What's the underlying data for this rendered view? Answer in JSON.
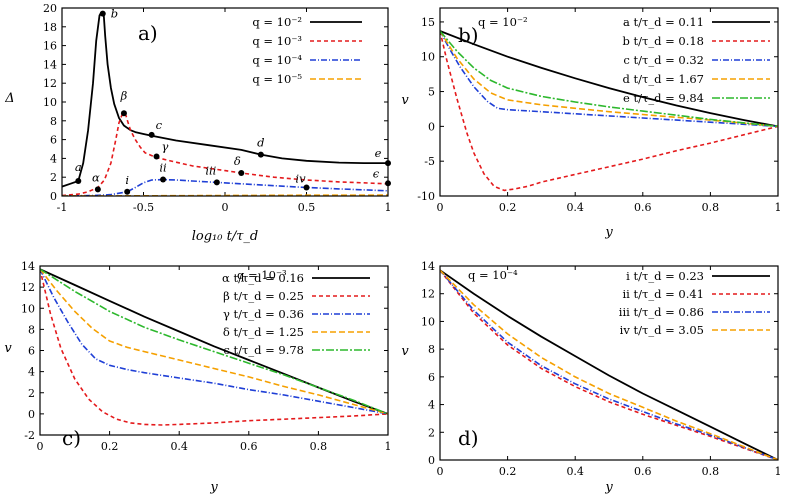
{
  "colors": {
    "black": "#000000",
    "red": "#e41a1c",
    "blue": "#1f3fd6",
    "orange": "#f5a000",
    "green": "#2db82d"
  },
  "chart_data": [
    {
      "id": "a",
      "type": "line",
      "panel_label": "a)",
      "title": "",
      "xlabel": "log₁₀ t/τ_d",
      "ylabel": "Δ",
      "xlim": [
        -1,
        1
      ],
      "ylim": [
        0,
        20
      ],
      "xticks": [
        -1,
        -0.5,
        0,
        0.5,
        1
      ],
      "xtick_labels": [
        "-1",
        "-0.5",
        "0",
        "0.5",
        "1"
      ],
      "yticks": [
        0,
        2,
        4,
        6,
        8,
        10,
        12,
        14,
        16,
        18,
        20
      ],
      "ytick_labels": [
        "0",
        "2",
        "4",
        "6",
        "8",
        "10",
        "12",
        "14",
        "16",
        "18",
        "20"
      ],
      "legend_position": "top-right",
      "series": [
        {
          "name": "q = 10⁻²",
          "color": "black",
          "dash": "",
          "x": [
            -1,
            -0.95,
            -0.9,
            -0.87,
            -0.84,
            -0.81,
            -0.79,
            -0.77,
            -0.76,
            -0.75,
            -0.745,
            -0.735,
            -0.72,
            -0.7,
            -0.68,
            -0.65,
            -0.62,
            -0.58,
            -0.55,
            -0.5,
            -0.45,
            -0.3,
            -0.1,
            0.1,
            0.22,
            0.35,
            0.5,
            0.7,
            0.85,
            1
          ],
          "y": [
            1.0,
            1.3,
            1.6,
            3.5,
            7.0,
            12.0,
            16.5,
            19.2,
            19.5,
            19.5,
            19.5,
            17.0,
            14.0,
            11.5,
            9.8,
            8.3,
            7.5,
            7.0,
            6.8,
            6.6,
            6.4,
            5.9,
            5.4,
            4.9,
            4.4,
            4.0,
            3.75,
            3.55,
            3.5,
            3.5
          ]
        },
        {
          "name": "q = 10⁻³",
          "color": "red",
          "dash": "4,3",
          "x": [
            -1,
            -0.9,
            -0.84,
            -0.78,
            -0.74,
            -0.7,
            -0.67,
            -0.65,
            -0.63,
            -0.62,
            -0.61,
            -0.6,
            -0.58,
            -0.55,
            -0.52,
            -0.49,
            -0.45,
            -0.42,
            -0.35,
            -0.2,
            0,
            0.1,
            0.3,
            0.5,
            0.7,
            1
          ],
          "y": [
            0.05,
            0.2,
            0.45,
            0.9,
            1.7,
            3.5,
            6.0,
            7.8,
            8.7,
            8.85,
            8.7,
            8.1,
            7.0,
            6.0,
            5.2,
            4.6,
            4.3,
            4.1,
            3.8,
            3.2,
            2.7,
            2.45,
            2.0,
            1.7,
            1.5,
            1.3
          ]
        },
        {
          "name": "q = 10⁻⁴",
          "color": "blue",
          "dash": "6,2,1,2",
          "x": [
            -1,
            -0.8,
            -0.7,
            -0.6,
            -0.55,
            -0.5,
            -0.45,
            -0.38,
            -0.3,
            -0.2,
            -0.05,
            0.1,
            0.3,
            0.5,
            0.7,
            1
          ],
          "y": [
            0,
            0.05,
            0.15,
            0.45,
            0.9,
            1.4,
            1.7,
            1.75,
            1.7,
            1.6,
            1.45,
            1.3,
            1.1,
            0.9,
            0.75,
            0.55
          ]
        },
        {
          "name": "q = 10⁻⁵",
          "color": "orange",
          "dash": "6,3",
          "x": [
            -1,
            -0.5,
            0,
            0.5,
            1
          ],
          "y": [
            0,
            0.02,
            0.05,
            0.08,
            0.1
          ]
        }
      ],
      "points": [
        {
          "label": "a",
          "x": -0.9,
          "y": 1.6,
          "ldx": 0,
          "ldy": -10,
          "anchor": "middle"
        },
        {
          "label": "b",
          "x": -0.75,
          "y": 19.4,
          "ldx": 8,
          "ldy": 4,
          "anchor": "start"
        },
        {
          "label": "c",
          "x": -0.45,
          "y": 6.5,
          "ldx": 4,
          "ldy": -6,
          "anchor": "start"
        },
        {
          "label": "d",
          "x": 0.22,
          "y": 4.4,
          "ldx": 0,
          "ldy": -8,
          "anchor": "middle"
        },
        {
          "label": "e",
          "x": 1.0,
          "y": 3.5,
          "ldx": -10,
          "ldy": -6,
          "anchor": "middle"
        },
        {
          "label": "α",
          "x": -0.78,
          "y": 0.7,
          "ldx": -2,
          "ldy": -8,
          "anchor": "middle"
        },
        {
          "label": "β",
          "x": -0.62,
          "y": 8.8,
          "ldx": 0,
          "ldy": -14,
          "anchor": "middle"
        },
        {
          "label": "γ",
          "x": -0.42,
          "y": 4.2,
          "ldx": 5,
          "ldy": -6,
          "anchor": "start"
        },
        {
          "label": "δ",
          "x": 0.1,
          "y": 2.45,
          "ldx": -4,
          "ldy": -8,
          "anchor": "middle"
        },
        {
          "label": "ϵ",
          "x": 1.0,
          "y": 1.35,
          "ldx": -12,
          "ldy": -6,
          "anchor": "middle"
        },
        {
          "label": "i",
          "x": -0.6,
          "y": 0.45,
          "ldx": 0,
          "ldy": -8,
          "anchor": "middle"
        },
        {
          "label": "ii",
          "x": -0.38,
          "y": 1.75,
          "ldx": 0,
          "ldy": -8,
          "anchor": "middle"
        },
        {
          "label": "iii",
          "x": -0.05,
          "y": 1.45,
          "ldx": -6,
          "ldy": -8,
          "anchor": "middle"
        },
        {
          "label": "iv",
          "x": 0.5,
          "y": 0.9,
          "ldx": -6,
          "ldy": -5,
          "anchor": "middle"
        }
      ]
    },
    {
      "id": "b",
      "type": "line",
      "panel_label": "b)",
      "title": "q = 10⁻²",
      "xlabel": "y",
      "ylabel": "v",
      "xlim": [
        0,
        1
      ],
      "ylim": [
        -10,
        17
      ],
      "xticks": [
        0,
        0.2,
        0.4,
        0.6,
        0.8,
        1
      ],
      "xtick_labels": [
        "0",
        "0.2",
        "0.4",
        "0.6",
        "0.8",
        "1"
      ],
      "yticks": [
        -10,
        -5,
        0,
        5,
        10,
        15
      ],
      "ytick_labels": [
        "-10",
        "-5",
        "0",
        "5",
        "10",
        "15"
      ],
      "legend_position": "top-right",
      "series": [
        {
          "name": "a t/τ_d = 0.11",
          "color": "black",
          "dash": "",
          "x": [
            0,
            0.1,
            0.2,
            0.3,
            0.4,
            0.5,
            0.6,
            0.7,
            0.8,
            0.9,
            1
          ],
          "y": [
            13.7,
            11.8,
            10.0,
            8.4,
            6.9,
            5.5,
            4.2,
            3.0,
            1.9,
            0.9,
            0
          ]
        },
        {
          "name": "b t/τ_d = 0.18",
          "color": "red",
          "dash": "4,3",
          "x": [
            0,
            0.02,
            0.05,
            0.08,
            0.1,
            0.13,
            0.16,
            0.19,
            0.22,
            0.26,
            0.3,
            0.4,
            0.5,
            0.6,
            0.7,
            0.8,
            0.9,
            1
          ],
          "y": [
            13.7,
            9.5,
            4.0,
            -1.0,
            -3.8,
            -6.8,
            -8.6,
            -9.2,
            -9.0,
            -8.6,
            -8.0,
            -6.9,
            -5.8,
            -4.7,
            -3.5,
            -2.4,
            -1.2,
            0
          ]
        },
        {
          "name": "c t/τ_d = 0.32",
          "color": "blue",
          "dash": "6,2,1,2",
          "x": [
            0,
            0.03,
            0.06,
            0.1,
            0.14,
            0.17,
            0.2,
            0.3,
            0.4,
            0.5,
            0.6,
            0.7,
            0.8,
            0.9,
            1
          ],
          "y": [
            13.7,
            11.0,
            8.5,
            5.7,
            3.6,
            2.6,
            2.4,
            2.1,
            1.8,
            1.5,
            1.2,
            0.9,
            0.6,
            0.3,
            0
          ]
        },
        {
          "name": "d t/τ_d = 1.67",
          "color": "orange",
          "dash": "6,3",
          "x": [
            0,
            0.05,
            0.1,
            0.15,
            0.2,
            0.3,
            0.4,
            0.5,
            0.6,
            0.7,
            0.8,
            0.9,
            1
          ],
          "y": [
            13.7,
            9.8,
            6.8,
            4.8,
            3.8,
            3.1,
            2.6,
            2.1,
            1.7,
            1.3,
            0.9,
            0.45,
            0
          ]
        },
        {
          "name": "e t/τ_d = 9.84",
          "color": "green",
          "dash": "8,2,2,2",
          "x": [
            0,
            0.05,
            0.1,
            0.15,
            0.2,
            0.3,
            0.4,
            0.5,
            0.6,
            0.7,
            0.8,
            0.9,
            1
          ],
          "y": [
            13.7,
            10.8,
            8.4,
            6.6,
            5.5,
            4.3,
            3.5,
            2.8,
            2.2,
            1.6,
            1.0,
            0.5,
            0
          ]
        }
      ]
    },
    {
      "id": "c",
      "type": "line",
      "panel_label": "c)",
      "title": "q = 10⁻³",
      "xlabel": "y",
      "ylabel": "v",
      "xlim": [
        0,
        1
      ],
      "ylim": [
        -2,
        14
      ],
      "xticks": [
        0,
        0.2,
        0.4,
        0.6,
        0.8,
        1
      ],
      "xtick_labels": [
        "0",
        "0.2",
        "0.4",
        "0.6",
        "0.8",
        "1"
      ],
      "yticks": [
        -2,
        0,
        2,
        4,
        6,
        8,
        10,
        12,
        14
      ],
      "ytick_labels": [
        "-2",
        "0",
        "2",
        "4",
        "6",
        "8",
        "10",
        "12",
        "14"
      ],
      "legend_position": "top-right",
      "series": [
        {
          "name": "α t/τ_d = 0.16",
          "color": "black",
          "dash": "",
          "x": [
            0,
            0.1,
            0.2,
            0.3,
            0.4,
            0.5,
            0.6,
            0.7,
            0.8,
            0.9,
            1
          ],
          "y": [
            13.7,
            12.2,
            10.7,
            9.2,
            7.8,
            6.4,
            5.1,
            3.8,
            2.5,
            1.2,
            0
          ]
        },
        {
          "name": "β t/τ_d = 0.25",
          "color": "red",
          "dash": "4,3",
          "x": [
            0,
            0.03,
            0.06,
            0.1,
            0.14,
            0.18,
            0.22,
            0.26,
            0.3,
            0.35,
            0.4,
            0.5,
            0.6,
            0.7,
            0.8,
            0.9,
            1
          ],
          "y": [
            13.7,
            9.5,
            6.2,
            3.3,
            1.4,
            0.2,
            -0.5,
            -0.85,
            -1.0,
            -1.05,
            -1.0,
            -0.85,
            -0.65,
            -0.5,
            -0.35,
            -0.2,
            0
          ]
        },
        {
          "name": "γ t/τ_d = 0.36",
          "color": "blue",
          "dash": "6,2,1,2",
          "x": [
            0,
            0.04,
            0.08,
            0.12,
            0.16,
            0.2,
            0.25,
            0.3,
            0.4,
            0.5,
            0.6,
            0.7,
            0.8,
            0.9,
            1
          ],
          "y": [
            13.7,
            11.0,
            8.7,
            6.6,
            5.2,
            4.6,
            4.2,
            3.9,
            3.4,
            2.9,
            2.3,
            1.8,
            1.2,
            0.6,
            0
          ]
        },
        {
          "name": "δ t/τ_d = 1.25",
          "color": "orange",
          "dash": "6,3",
          "x": [
            0,
            0.05,
            0.1,
            0.15,
            0.2,
            0.25,
            0.3,
            0.4,
            0.5,
            0.6,
            0.7,
            0.8,
            0.9,
            1
          ],
          "y": [
            13.7,
            11.6,
            9.7,
            8.1,
            6.9,
            6.3,
            5.9,
            5.1,
            4.3,
            3.5,
            2.6,
            1.8,
            0.9,
            0
          ]
        },
        {
          "name": "ϵ t/τ_d = 9.78",
          "color": "green",
          "dash": "8,2,2,2",
          "x": [
            0,
            0.1,
            0.2,
            0.3,
            0.4,
            0.5,
            0.6,
            0.7,
            0.8,
            0.9,
            1
          ],
          "y": [
            13.7,
            11.6,
            9.7,
            8.2,
            7.0,
            5.9,
            4.8,
            3.7,
            2.5,
            1.3,
            0
          ]
        }
      ]
    },
    {
      "id": "d",
      "type": "line",
      "panel_label": "d)",
      "title": "q = 10⁻⁴",
      "xlabel": "y",
      "ylabel": "v",
      "xlim": [
        0,
        1
      ],
      "ylim": [
        0,
        14
      ],
      "xticks": [
        0,
        0.2,
        0.4,
        0.6,
        0.8,
        1
      ],
      "xtick_labels": [
        "0",
        "0.2",
        "0.4",
        "0.6",
        "0.8",
        "1"
      ],
      "yticks": [
        0,
        2,
        4,
        6,
        8,
        10,
        12,
        14
      ],
      "ytick_labels": [
        "0",
        "2",
        "4",
        "6",
        "8",
        "10",
        "12",
        "14"
      ],
      "legend_position": "top-right",
      "series": [
        {
          "name": "i t/τ_d = 0.23",
          "color": "black",
          "dash": "",
          "x": [
            0,
            0.1,
            0.2,
            0.3,
            0.4,
            0.5,
            0.6,
            0.7,
            0.8,
            0.9,
            1
          ],
          "y": [
            13.7,
            12.0,
            10.4,
            8.9,
            7.5,
            6.1,
            4.8,
            3.6,
            2.4,
            1.2,
            0
          ]
        },
        {
          "name": "ii t/τ_d = 0.41",
          "color": "red",
          "dash": "4,3",
          "x": [
            0,
            0.1,
            0.2,
            0.3,
            0.4,
            0.5,
            0.6,
            0.7,
            0.8,
            0.9,
            1
          ],
          "y": [
            13.7,
            10.6,
            8.3,
            6.6,
            5.3,
            4.2,
            3.3,
            2.5,
            1.7,
            0.85,
            0
          ]
        },
        {
          "name": "iii t/τ_d = 0.86",
          "color": "blue",
          "dash": "6,2,1,2",
          "x": [
            0,
            0.1,
            0.2,
            0.3,
            0.4,
            0.5,
            0.6,
            0.7,
            0.8,
            0.9,
            1
          ],
          "y": [
            13.7,
            10.8,
            8.5,
            6.8,
            5.5,
            4.4,
            3.5,
            2.6,
            1.8,
            0.9,
            0
          ]
        },
        {
          "name": "iv t/τ_d = 3.05",
          "color": "orange",
          "dash": "6,3",
          "x": [
            0,
            0.1,
            0.2,
            0.3,
            0.4,
            0.5,
            0.6,
            0.7,
            0.8,
            0.9,
            1
          ],
          "y": [
            13.7,
            11.2,
            9.1,
            7.4,
            6.0,
            4.8,
            3.8,
            2.8,
            1.9,
            0.95,
            0
          ]
        }
      ]
    }
  ]
}
